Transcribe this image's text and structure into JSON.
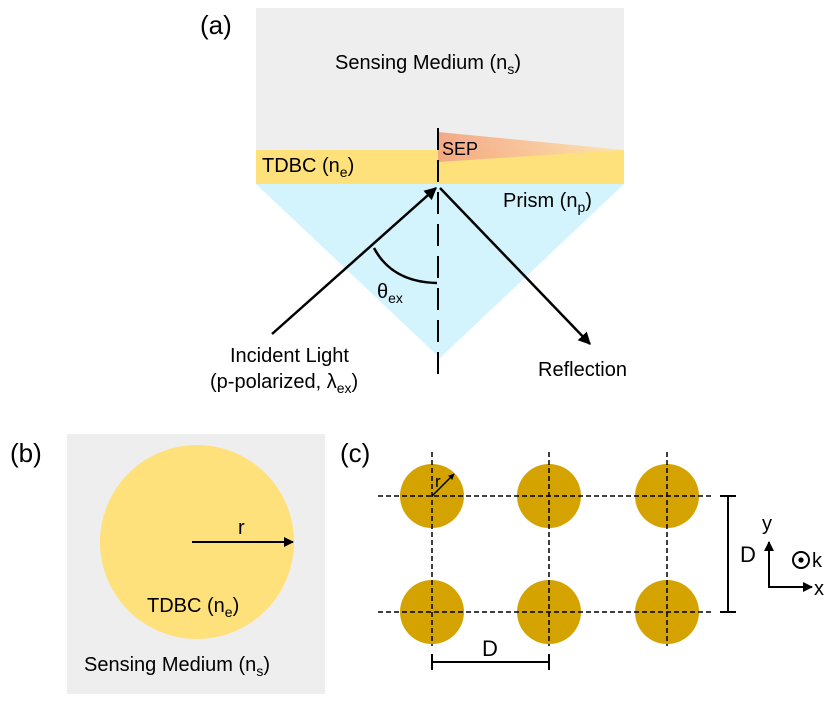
{
  "panel_a": {
    "label": "(a)",
    "sensing_medium": {
      "text": "Sensing Medium (n",
      "sub": "s",
      "close": ")"
    },
    "sep": "SEP",
    "tdbc": {
      "text": "TDBC (n",
      "sub": "e",
      "close": ")"
    },
    "prism": {
      "text": "Prism (n",
      "sub": "p",
      "close": ")"
    },
    "angle": {
      "text": "θ",
      "sub": "ex"
    },
    "incident_line1": "Incident Light",
    "incident_line2": {
      "text": "(p-polarized, λ",
      "sub": "ex",
      "close": ")"
    },
    "reflection": "Reflection"
  },
  "panel_b": {
    "label": "(b)",
    "radius": "r",
    "tdbc": {
      "text": "TDBC (n",
      "sub": "e",
      "close": ")"
    },
    "sensing_medium": {
      "text": "Sensing Medium (n",
      "sub": "s",
      "close": ")"
    }
  },
  "panel_c": {
    "label": "(c)",
    "radius": "r",
    "period_vertical": "D",
    "period_horizontal": "D",
    "axis_y": "y",
    "axis_x": "x",
    "axis_k": "k"
  },
  "colors": {
    "sensing_medium": "#eeeeee",
    "tdbc": "#fee17a",
    "prism": "#d3f3fd",
    "sep": "#f7b98f",
    "disk": "#d4a300"
  }
}
